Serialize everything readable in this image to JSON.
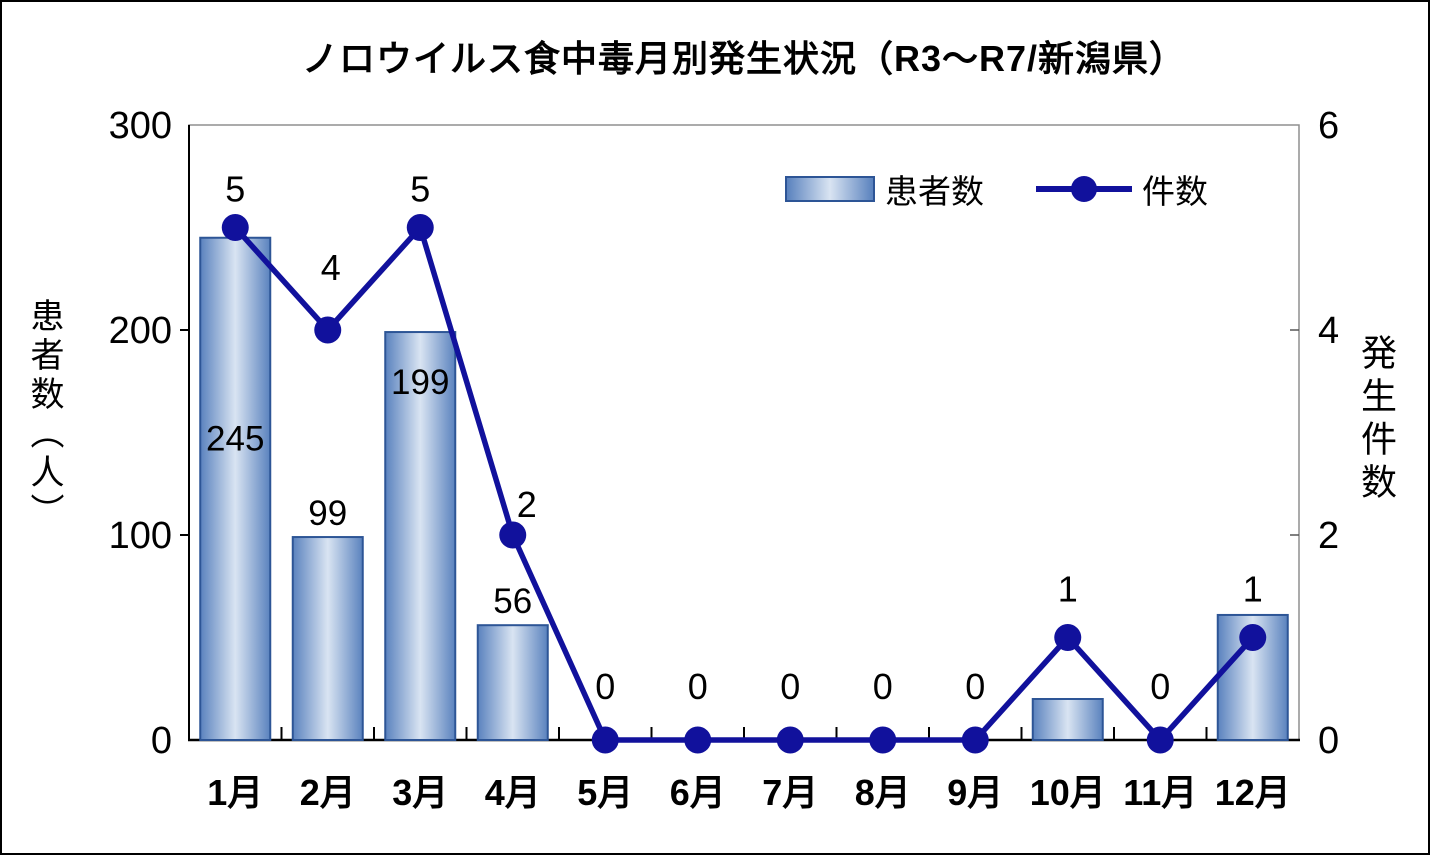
{
  "title": "ノロウイルス食中毒月別発生状況（R3～R7/新潟県）",
  "legend": {
    "items": [
      {
        "label": "患者数",
        "type": "bar"
      },
      {
        "label": "件数",
        "type": "line"
      }
    ]
  },
  "chart_data": {
    "type": "bar",
    "combo": "bar+line",
    "title": "ノロウイルス食中毒月別発生状況（R3～R7/新潟県）",
    "categories": [
      "1月",
      "2月",
      "3月",
      "4月",
      "5月",
      "6月",
      "7月",
      "8月",
      "9月",
      "10月",
      "11月",
      "12月"
    ],
    "series": [
      {
        "name": "患者数",
        "type": "bar",
        "axis": "left",
        "values": [
          245,
          99,
          199,
          56,
          0,
          0,
          0,
          0,
          0,
          20,
          0,
          61
        ],
        "data_labels": [
          "245",
          "99",
          "199",
          "56",
          "",
          "",
          "",
          "",
          "",
          "",
          "",
          ""
        ],
        "label_placement": [
          "inside-middle",
          "above",
          "inside-top",
          "above",
          "",
          "",
          "",
          "",
          "",
          "",
          "",
          ""
        ]
      },
      {
        "name": "件数",
        "type": "line",
        "axis": "right",
        "values": [
          5,
          4,
          5,
          2,
          0,
          0,
          0,
          0,
          0,
          1,
          0,
          1
        ],
        "data_labels": [
          "5",
          "4",
          "5",
          "2",
          "0",
          "0",
          "0",
          "0",
          "0",
          "1",
          "0",
          "1"
        ]
      }
    ],
    "ylabel_left": "患者数（人）",
    "ylabel_right": "発生件数",
    "ylim_left": [
      0,
      300
    ],
    "ylim_right": [
      0,
      6
    ],
    "yticks_left": [
      "0",
      "100",
      "200",
      "300"
    ],
    "yticks_right": [
      "0",
      "2",
      "4",
      "6"
    ],
    "grid": false,
    "legend_position": "top-right",
    "colors": {
      "line": "#11119c",
      "bar_border": "#2d5596",
      "bar_gradient_edge": "#5a82be",
      "bar_gradient_center": "#d9e4f2",
      "plot_border": "#8f8f8f",
      "axis": "#000000"
    },
    "line_label_offsets": {
      "dx": [
        0,
        3,
        0,
        14,
        0,
        0,
        0,
        0,
        0,
        0,
        0,
        0
      ],
      "dy": [
        -26,
        -50,
        -26,
        -18,
        -41,
        -41,
        -41,
        -41,
        -41,
        -36,
        -41,
        -36
      ]
    }
  }
}
